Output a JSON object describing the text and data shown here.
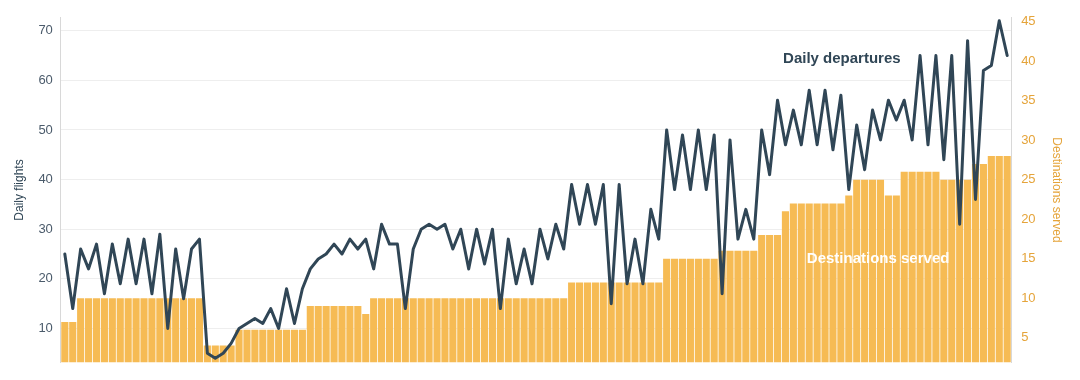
{
  "chart_data": {
    "type": "bar",
    "categories": [
      null,
      null,
      null,
      null,
      null,
      null,
      null,
      null,
      null,
      null,
      null,
      null,
      null,
      null,
      null,
      null,
      null,
      null,
      null,
      null,
      null,
      null,
      null,
      null,
      null,
      null,
      null,
      null,
      null,
      null,
      null,
      null,
      null,
      null,
      null,
      null,
      null,
      null,
      null,
      null,
      null,
      null,
      null,
      null,
      null,
      null,
      null,
      null,
      null,
      null,
      null,
      null,
      null,
      null,
      null,
      null,
      null,
      null,
      null,
      null,
      null,
      null,
      null,
      null,
      null,
      null,
      null,
      null,
      null,
      null,
      null,
      null,
      null,
      null,
      null,
      null,
      null,
      null,
      null,
      null,
      null,
      null,
      null,
      null,
      null,
      null,
      null,
      null,
      null,
      null,
      null,
      null,
      null,
      null,
      null,
      null,
      null,
      null,
      null,
      null,
      null,
      null,
      null,
      null,
      null,
      null,
      null,
      null,
      null,
      null,
      null,
      null,
      null,
      null,
      null,
      null,
      null,
      null,
      null,
      null
    ],
    "series": [
      {
        "name": "Destinations served",
        "axis": "y2",
        "color": "#f6bb54",
        "values": [
          7,
          7,
          10,
          10,
          10,
          10,
          10,
          10,
          10,
          10,
          10,
          10,
          10,
          10,
          10,
          10,
          10,
          10,
          4,
          4,
          4,
          4,
          6,
          6,
          6,
          6,
          6,
          6,
          6,
          6,
          6,
          9,
          9,
          9,
          9,
          9,
          9,
          9,
          8,
          10,
          10,
          10,
          10,
          10,
          10,
          10,
          10,
          10,
          10,
          10,
          10,
          10,
          10,
          10,
          10,
          10,
          10,
          10,
          10,
          10,
          10,
          10,
          10,
          10,
          12,
          12,
          12,
          12,
          12,
          12,
          12,
          12,
          12,
          12,
          12,
          12,
          15,
          15,
          15,
          15,
          15,
          15,
          15,
          16,
          16,
          16,
          16,
          16,
          18,
          18,
          18,
          21,
          22,
          22,
          22,
          22,
          22,
          22,
          22,
          23,
          25,
          25,
          25,
          25,
          23,
          23,
          26,
          26,
          26,
          26,
          26,
          25,
          25,
          25,
          25,
          27,
          27,
          28,
          28,
          28
        ]
      },
      {
        "name": "Daily departures",
        "type": "line",
        "axis": "y",
        "color": "#304656",
        "values": [
          25,
          14,
          26,
          22,
          27,
          17,
          27,
          19,
          28,
          19,
          28,
          17,
          29,
          10,
          26,
          16,
          26,
          28,
          5,
          4,
          5,
          7,
          10,
          11,
          12,
          11,
          14,
          10,
          18,
          11,
          18,
          22,
          24,
          25,
          27,
          25,
          28,
          26,
          28,
          22,
          31,
          27,
          27,
          14,
          26,
          30,
          31,
          30,
          31,
          26,
          30,
          22,
          30,
          23,
          30,
          14,
          28,
          19,
          26,
          19,
          30,
          24,
          31,
          26,
          39,
          31,
          39,
          31,
          39,
          15,
          39,
          19,
          28,
          19,
          34,
          28,
          50,
          38,
          49,
          38,
          50,
          38,
          49,
          17,
          48,
          28,
          34,
          28,
          50,
          41,
          56,
          47,
          54,
          47,
          58,
          47,
          58,
          46,
          57,
          38,
          51,
          42,
          54,
          48,
          56,
          52,
          56,
          48,
          65,
          47,
          65,
          44,
          65,
          31,
          68,
          36,
          62,
          63,
          72,
          65
        ]
      }
    ],
    "ylabel": "Daily flights",
    "y2label": "Destinations served",
    "ylim": [
      3.2,
      72.6
    ],
    "yticks": [
      10,
      20,
      30,
      40,
      50,
      60,
      70
    ],
    "y2lim": [
      1.9,
      45.5
    ],
    "y2ticks": [
      5,
      10,
      15,
      20,
      25,
      30,
      35,
      40,
      45
    ],
    "grid": "y",
    "legend": false,
    "marker": "none",
    "line_style": "solid"
  }
}
